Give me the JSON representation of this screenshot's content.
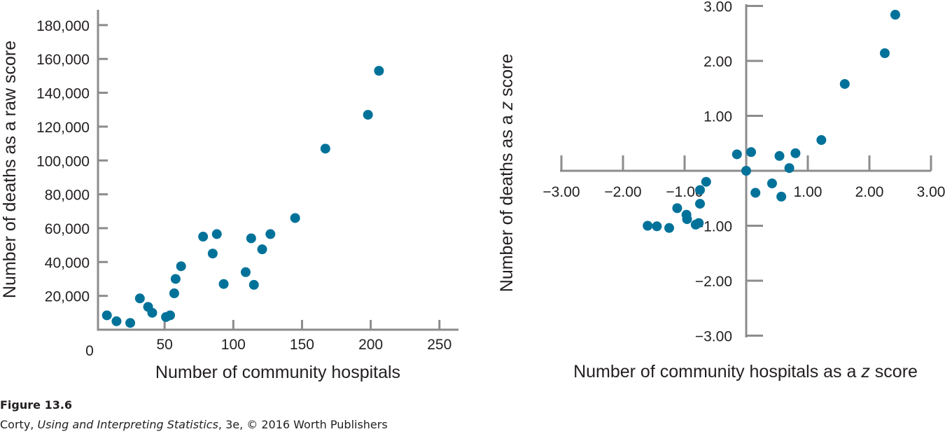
{
  "chart_data": [
    {
      "type": "scatter",
      "xlabel": "Number of community hospitals",
      "ylabel": "Number of deaths as a raw score",
      "origin_label": "0",
      "xlim": [
        0,
        260
      ],
      "ylim": [
        0,
        190000
      ],
      "x_ticks": [
        50,
        100,
        150,
        200,
        250
      ],
      "x_tick_labels": [
        "50",
        "100",
        "150",
        "200",
        "250"
      ],
      "y_ticks": [
        20000,
        40000,
        60000,
        80000,
        100000,
        120000,
        140000,
        160000,
        180000
      ],
      "y_tick_labels": [
        "20,000",
        "40,000",
        "60,000",
        "80,000",
        "100,000",
        "120,000",
        "140,000",
        "160,000",
        "180,000"
      ],
      "grid": false,
      "marker_color": "#00729a",
      "points": [
        {
          "x": 8,
          "y": 8500
        },
        {
          "x": 15,
          "y": 5000
        },
        {
          "x": 25,
          "y": 4000
        },
        {
          "x": 32,
          "y": 18500
        },
        {
          "x": 38,
          "y": 13500
        },
        {
          "x": 41,
          "y": 10000
        },
        {
          "x": 51,
          "y": 7500
        },
        {
          "x": 54,
          "y": 8500
        },
        {
          "x": 57,
          "y": 21500
        },
        {
          "x": 58,
          "y": 30000
        },
        {
          "x": 62,
          "y": 37500
        },
        {
          "x": 78,
          "y": 55000
        },
        {
          "x": 85,
          "y": 45000
        },
        {
          "x": 88,
          "y": 56500
        },
        {
          "x": 93,
          "y": 27000
        },
        {
          "x": 109,
          "y": 34000
        },
        {
          "x": 113,
          "y": 54000
        },
        {
          "x": 115,
          "y": 26500
        },
        {
          "x": 121,
          "y": 47500
        },
        {
          "x": 127,
          "y": 56500
        },
        {
          "x": 145,
          "y": 66000
        },
        {
          "x": 167,
          "y": 107000
        },
        {
          "x": 198,
          "y": 127000
        },
        {
          "x": 206,
          "y": 153000
        }
      ]
    },
    {
      "type": "scatter",
      "xlabel_prefix": "Number of community hospitals as a ",
      "xlabel_var": "z",
      "xlabel_suffix": " score",
      "ylabel_prefix": "Number of deaths as a ",
      "ylabel_var": "z",
      "ylabel_suffix": " score",
      "xlim": [
        -3.3,
        3.3
      ],
      "ylim": [
        -3,
        3
      ],
      "x_ticks": [
        -3,
        -2,
        -1,
        1,
        2,
        3
      ],
      "x_tick_labels": [
        "−3.00",
        "−2.00",
        "−1.00",
        "1.00",
        "2.00",
        "3.00"
      ],
      "y_ticks": [
        3,
        2,
        1,
        -1,
        -2,
        -3
      ],
      "y_tick_labels": [
        "3.00",
        "2.00",
        "1.00",
        "−1.00",
        "−2.00",
        "−3.00"
      ],
      "grid": false,
      "marker_color": "#00729a",
      "points": [
        {
          "x": -1.6,
          "y": -1.0
        },
        {
          "x": -1.45,
          "y": -1.01
        },
        {
          "x": -1.25,
          "y": -1.04
        },
        {
          "x": -1.12,
          "y": -0.68
        },
        {
          "x": -0.97,
          "y": -0.8
        },
        {
          "x": -0.96,
          "y": -0.88
        },
        {
          "x": -0.82,
          "y": -0.98
        },
        {
          "x": -0.77,
          "y": -0.95
        },
        {
          "x": -0.75,
          "y": -0.6
        },
        {
          "x": -0.75,
          "y": -0.35
        },
        {
          "x": -0.65,
          "y": -0.2
        },
        {
          "x": -0.15,
          "y": 0.3
        },
        {
          "x": 0.0,
          "y": 0.0
        },
        {
          "x": 0.08,
          "y": 0.34
        },
        {
          "x": 0.15,
          "y": -0.4
        },
        {
          "x": 0.42,
          "y": -0.23
        },
        {
          "x": 0.54,
          "y": 0.27
        },
        {
          "x": 0.57,
          "y": -0.47
        },
        {
          "x": 0.7,
          "y": 0.05
        },
        {
          "x": 0.8,
          "y": 0.32
        },
        {
          "x": 1.22,
          "y": 0.56
        },
        {
          "x": 1.6,
          "y": 1.58
        },
        {
          "x": 2.25,
          "y": 2.14
        },
        {
          "x": 2.42,
          "y": 2.84
        }
      ]
    }
  ],
  "caption": {
    "figure_label": "Figure 13.6",
    "credit_prefix": "Corty, ",
    "credit_title": "Using and Interpreting Statistics",
    "credit_suffix": ", 3e, © 2016 Worth Publishers"
  }
}
